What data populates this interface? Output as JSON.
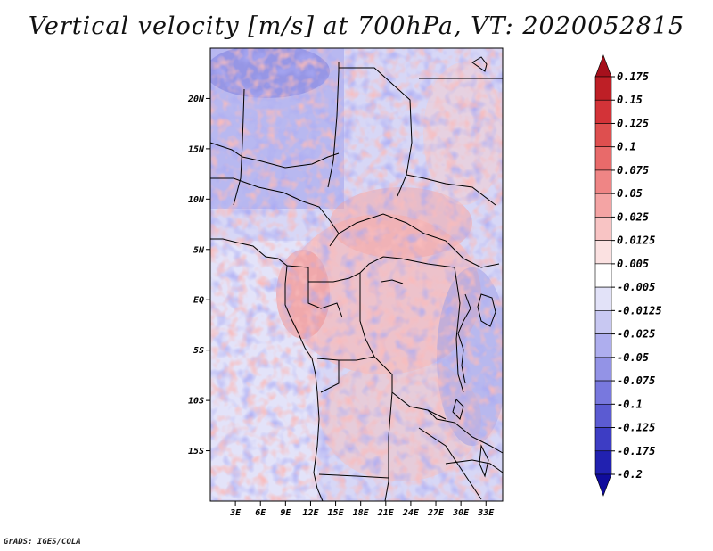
{
  "title": "Vertical velocity [m/s] at 700hPa, VT: 2020052815",
  "credit": "GrADS: IGES/COLA",
  "map": {
    "lat_labels": [
      "20N",
      "15N",
      "10N",
      "5N",
      "EQ",
      "5S",
      "10S",
      "15S"
    ],
    "lon_labels": [
      "3E",
      "6E",
      "9E",
      "12E",
      "15E",
      "18E",
      "21E",
      "24E",
      "27E",
      "30E",
      "33E"
    ],
    "lat_range": [
      -20,
      25
    ],
    "lon_range": [
      0,
      35
    ]
  },
  "colorbar": {
    "labels": [
      "0.175",
      "0.15",
      "0.125",
      "0.1",
      "0.075",
      "0.05",
      "0.025",
      "0.0125",
      "0.005",
      "-0.005",
      "-0.0125",
      "-0.025",
      "-0.05",
      "-0.075",
      "-0.1",
      "-0.125",
      "-0.175",
      "-0.2"
    ],
    "colors": [
      "#a6101c",
      "#be1f26",
      "#d33338",
      "#de4f4f",
      "#e86a6a",
      "#ef8585",
      "#f4a4a4",
      "#f8c4c4",
      "#fbe1e1",
      "#ffffff",
      "#e2e2f8",
      "#c8c8f2",
      "#aeaeee",
      "#9393e6",
      "#7878de",
      "#5b5bd2",
      "#3d3dc4",
      "#2121b0",
      "#100c9c"
    ]
  }
}
